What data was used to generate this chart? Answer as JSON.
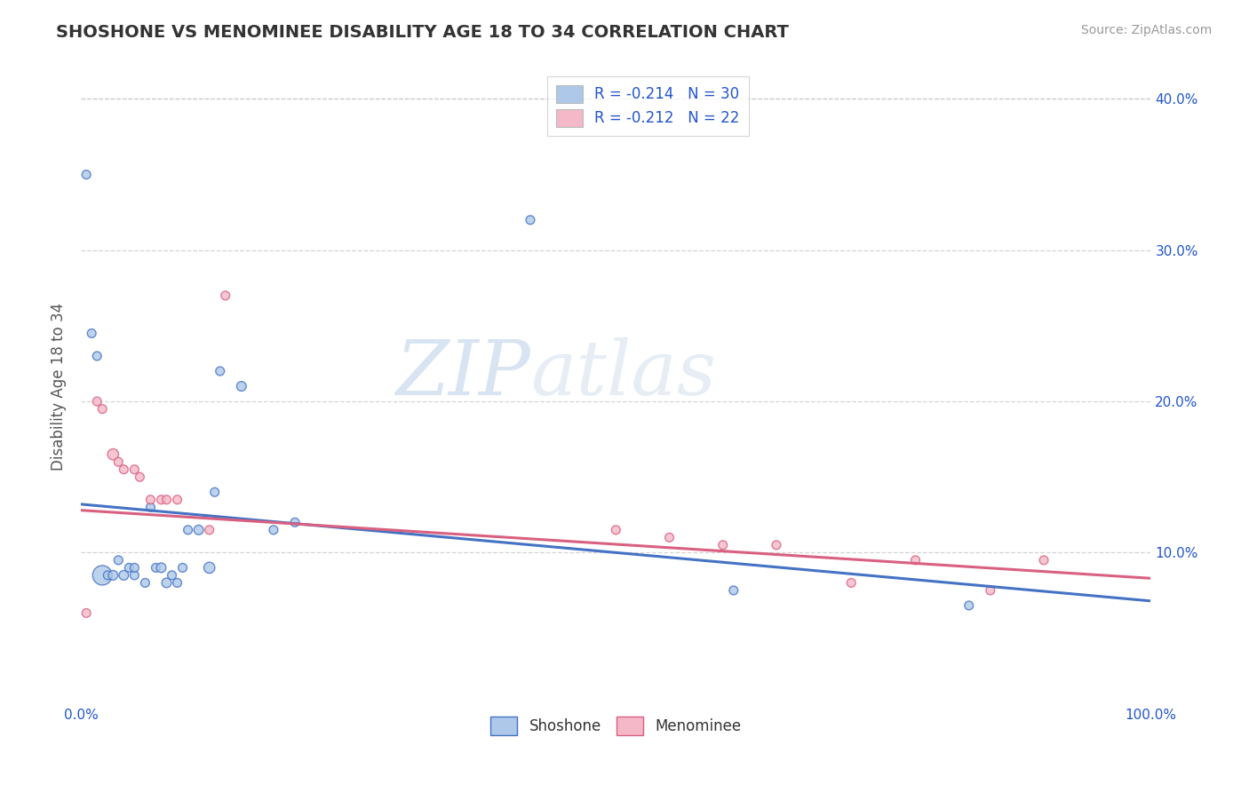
{
  "title": "SHOSHONE VS MENOMINEE DISABILITY AGE 18 TO 34 CORRELATION CHART",
  "source": "Source: ZipAtlas.com",
  "ylabel": "Disability Age 18 to 34",
  "xlim": [
    0.0,
    1.0
  ],
  "ylim": [
    0.0,
    0.42
  ],
  "ytick_vals": [
    0.1,
    0.2,
    0.3,
    0.4
  ],
  "ytick_labels": [
    "10.0%",
    "20.0%",
    "30.0%",
    "40.0%"
  ],
  "shoshone_R": -0.214,
  "shoshone_N": 30,
  "menominee_R": -0.212,
  "menominee_N": 22,
  "shoshone_color": "#adc8e8",
  "shoshone_line_color": "#4472c4",
  "menominee_color": "#f4b8c8",
  "menominee_line_color": "#d96080",
  "legend_text_color": "#2255cc",
  "background_color": "#ffffff",
  "grid_color": "#c8c8c8",
  "shoshone_x": [
    0.005,
    0.01,
    0.015,
    0.02,
    0.025,
    0.03,
    0.035,
    0.04,
    0.045,
    0.05,
    0.05,
    0.06,
    0.065,
    0.07,
    0.075,
    0.08,
    0.085,
    0.09,
    0.095,
    0.1,
    0.11,
    0.12,
    0.125,
    0.13,
    0.15,
    0.18,
    0.2,
    0.42,
    0.61,
    0.83
  ],
  "shoshone_y": [
    0.35,
    0.245,
    0.23,
    0.085,
    0.085,
    0.085,
    0.095,
    0.085,
    0.09,
    0.085,
    0.09,
    0.08,
    0.13,
    0.09,
    0.09,
    0.08,
    0.085,
    0.08,
    0.09,
    0.115,
    0.115,
    0.09,
    0.14,
    0.22,
    0.21,
    0.115,
    0.12,
    0.32,
    0.075,
    0.065
  ],
  "shoshone_sizes": [
    50,
    50,
    50,
    250,
    50,
    60,
    50,
    60,
    50,
    50,
    50,
    50,
    50,
    50,
    60,
    60,
    50,
    50,
    50,
    50,
    60,
    80,
    50,
    50,
    60,
    50,
    50,
    50,
    50,
    50
  ],
  "menominee_x": [
    0.005,
    0.015,
    0.02,
    0.03,
    0.035,
    0.04,
    0.05,
    0.055,
    0.065,
    0.075,
    0.08,
    0.09,
    0.12,
    0.135,
    0.5,
    0.55,
    0.6,
    0.65,
    0.72,
    0.78,
    0.85,
    0.9
  ],
  "menominee_y": [
    0.06,
    0.2,
    0.195,
    0.165,
    0.16,
    0.155,
    0.155,
    0.15,
    0.135,
    0.135,
    0.135,
    0.135,
    0.115,
    0.27,
    0.115,
    0.11,
    0.105,
    0.105,
    0.08,
    0.095,
    0.075,
    0.095
  ],
  "menominee_sizes": [
    50,
    50,
    50,
    80,
    50,
    50,
    50,
    50,
    50,
    50,
    50,
    50,
    50,
    50,
    50,
    50,
    50,
    50,
    50,
    50,
    50,
    50
  ],
  "watermark_zip": "ZIP",
  "watermark_atlas": "atlas",
  "line_start_x": 0.0,
  "line_end_x": 1.0,
  "blue_line_y0": 0.132,
  "blue_line_y1": 0.068,
  "pink_line_y0": 0.128,
  "pink_line_y1": 0.083
}
